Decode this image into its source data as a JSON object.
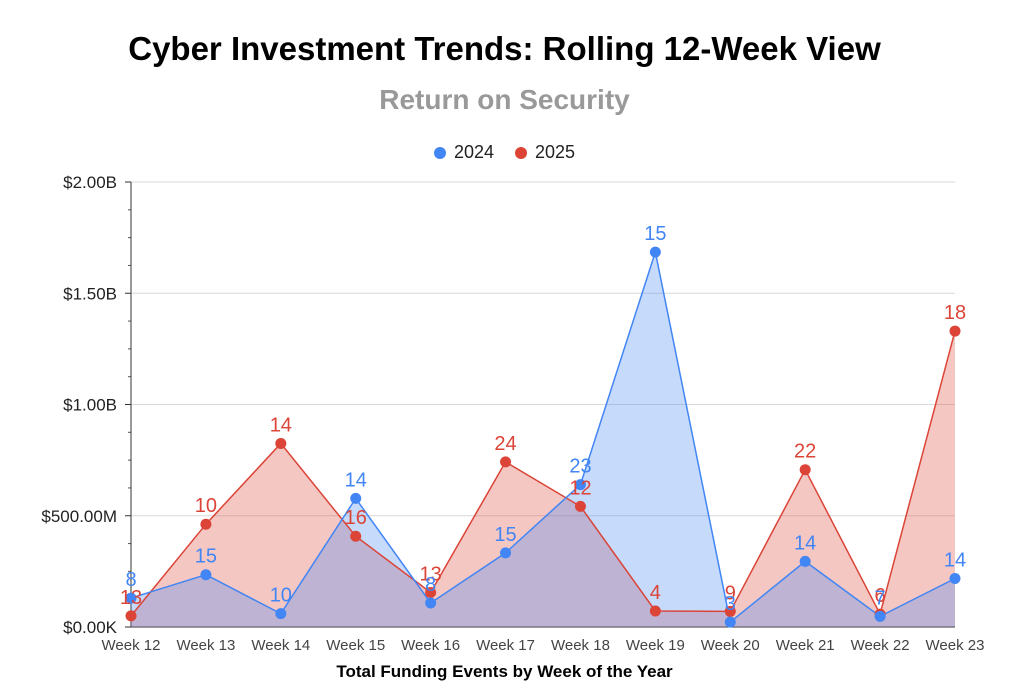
{
  "chart_data": {
    "type": "area",
    "title": "Cyber Investment Trends: Rolling 12-Week View",
    "subtitle": "Return on Security",
    "xlabel": "Total Funding Events by Week of the Year",
    "ylabel": "",
    "ylim": [
      0,
      2000000000
    ],
    "yticks": [
      0,
      500000000,
      1000000000,
      1500000000,
      2000000000
    ],
    "ytick_labels": [
      "$0.00K",
      "$500.00M",
      "$1.00B",
      "$1.50B",
      "$2.00B"
    ],
    "categories": [
      "Week 12",
      "Week 13",
      "Week 14",
      "Week 15",
      "Week 16",
      "Week 17",
      "Week 18",
      "Week 19",
      "Week 20",
      "Week 21",
      "Week 22",
      "Week 23"
    ],
    "legend_position": "top-center",
    "series": [
      {
        "name": "2024",
        "color": "#4285f4",
        "fill": "#c6d9f6",
        "values": [
          130000000,
          235000000,
          60000000,
          578000000,
          108000000,
          333000000,
          640000000,
          1685000000,
          22000000,
          295000000,
          48000000,
          218000000
        ],
        "labels": [
          "8",
          "15",
          "10",
          "14",
          "8",
          "15",
          "23",
          "15",
          "3",
          "14",
          "7",
          "14"
        ]
      },
      {
        "name": "2025",
        "color": "#db4437",
        "fill": "#f4c7c3",
        "values": [
          50000000,
          462000000,
          825000000,
          408000000,
          155000000,
          742000000,
          542000000,
          72000000,
          70000000,
          707000000,
          58000000,
          1330000000
        ],
        "labels": [
          "13",
          "10",
          "14",
          "16",
          "13",
          "24",
          "12",
          "4",
          "9",
          "22",
          "6",
          "18"
        ]
      }
    ]
  }
}
